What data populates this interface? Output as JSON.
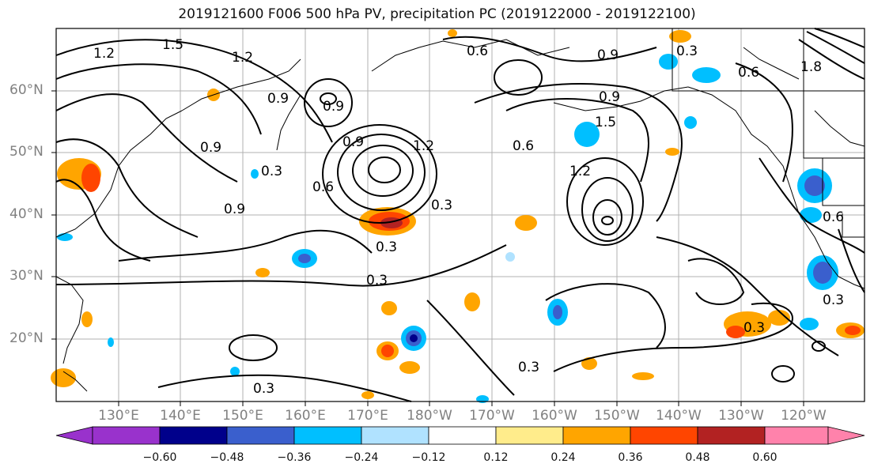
{
  "title": "2019121600 F006 500 hPa PV, precipitation PC (2019122000 - 2019122100)",
  "lat_labels": [
    "60°N",
    "50°N",
    "40°N",
    "30°N",
    "20°N"
  ],
  "lon_labels": [
    "130°E",
    "140°E",
    "150°E",
    "160°E",
    "170°E",
    "180°W",
    "170°W",
    "160°W",
    "150°W",
    "140°W",
    "130°W",
    "120°W"
  ],
  "colorbar": {
    "ticks": [
      "−0.60",
      "−0.48",
      "−0.36",
      "−0.24",
      "−0.12",
      "0.12",
      "0.24",
      "0.36",
      "0.48",
      "0.60"
    ],
    "colors": [
      "#9932cc",
      "#00008b",
      "#3a5fcd",
      "#00bfff",
      "#b0e2ff",
      "#ffffff",
      "#ffec8b",
      "#ffa500",
      "#ff4500",
      "#b22222",
      "#ff82ab"
    ]
  },
  "contour_labels": [
    "1.2",
    "1.5",
    "1.2",
    "0.9",
    "0.9",
    "0.9",
    "0.6",
    "0.3",
    "0.9",
    "1.2",
    "0.9",
    "0.3",
    "0.3",
    "0.3",
    "1.5",
    "1.2",
    "0.6",
    "0.9",
    "0.6",
    "0.3",
    "0.3",
    "0.3",
    "0.9",
    "0.6",
    "0.3",
    "0.3",
    "1.8",
    "0.6"
  ]
}
